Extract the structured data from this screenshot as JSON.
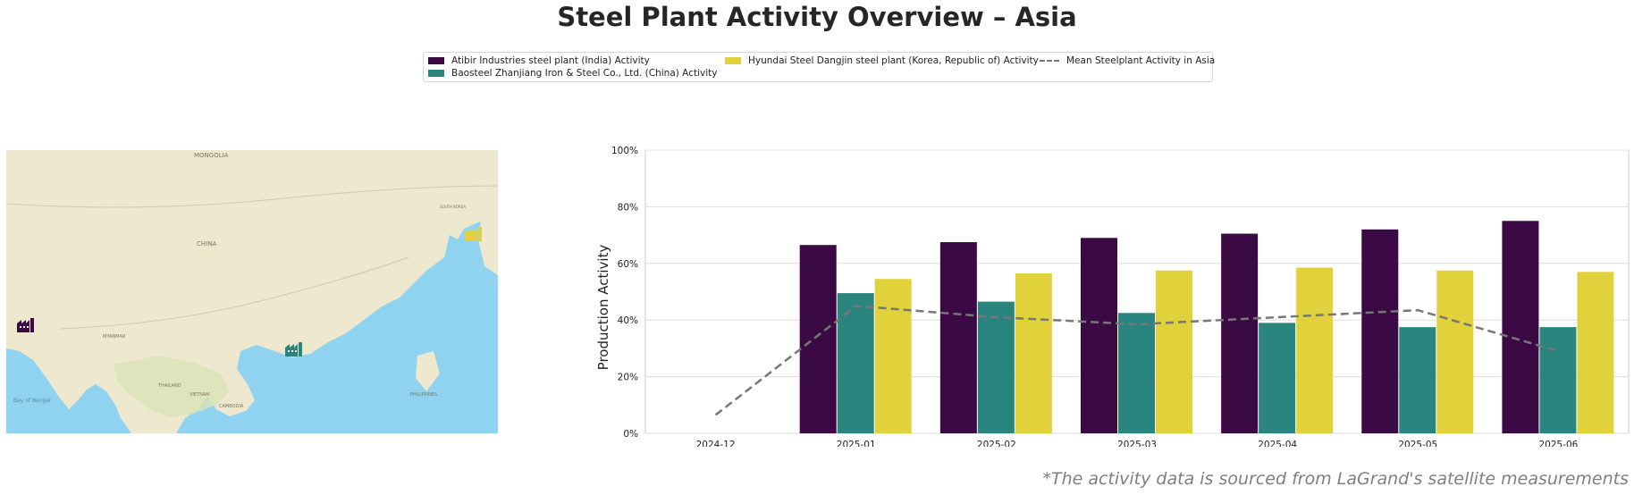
{
  "page": {
    "title": "Steel Plant Activity Overview – Asia",
    "footnote": "*The activity data is sourced from LaGrand's satellite measurements"
  },
  "legend": {
    "items": [
      {
        "label": "Atibir Industries steel plant (India) Activity",
        "color": "#3b0a45",
        "kind": "bar"
      },
      {
        "label": "Baosteel Zhanjiang Iron & Steel Co., Ltd. (China) Activity",
        "color": "#2a857e",
        "kind": "bar"
      },
      {
        "label": "Hyundai Steel Dangjin steel plant (Korea, Republic of) Activity",
        "color": "#e1d23b",
        "kind": "bar"
      },
      {
        "label": "Mean Steelplant Activity in Asia",
        "color": "#777777",
        "kind": "dashed-line"
      }
    ]
  },
  "map": {
    "labels": {
      "mongolia": "MONGOLIA",
      "china": "CHINA",
      "bay_of_bengal": "Bay of Bengal",
      "myanmar": "MYANMAR",
      "thailand": "THAILAND",
      "vietnam": "VIETNAM",
      "cambodia": "CAMBODIA",
      "philippines": "PHILIPPINES",
      "south_korea": "SOUTH KOREA"
    },
    "colors": {
      "land": "#eee8cf",
      "land_green": "#d9e3b8",
      "sea": "#8fd3f0"
    },
    "markers": [
      {
        "name": "atibir-marker",
        "icon": "factory-icon",
        "color": "#3b0a45"
      },
      {
        "name": "baosteel-marker",
        "icon": "factory-icon",
        "color": "#2a857e"
      },
      {
        "name": "hyundai-marker",
        "icon": "factory-icon",
        "color": "#e1d23b"
      }
    ]
  },
  "chart_data": {
    "type": "bar",
    "title": "",
    "xlabel": "",
    "ylabel": "Production Activity",
    "ylim": [
      0,
      100
    ],
    "yticks": [
      "0%",
      "20%",
      "40%",
      "60%",
      "80%",
      "100%"
    ],
    "grid": "horizontal",
    "categories": [
      "2024-12",
      "2025-01",
      "2025-02",
      "2025-03",
      "2025-04",
      "2025-05",
      "2025-06"
    ],
    "series": [
      {
        "name": "Atibir Industries steel plant (India) Activity",
        "color": "#3b0a45",
        "values": [
          null,
          66.5,
          67.5,
          69,
          70.5,
          72,
          75
        ]
      },
      {
        "name": "Baosteel Zhanjiang Iron & Steel Co., Ltd. (China) Activity",
        "color": "#2a857e",
        "values": [
          null,
          49.5,
          46.5,
          42.5,
          39,
          37.5,
          37.5
        ]
      },
      {
        "name": "Hyundai Steel Dangjin steel plant (Korea, Republic of) Activity",
        "color": "#e1d23b",
        "values": [
          null,
          54.5,
          56.5,
          57.5,
          58.5,
          57.5,
          57
        ]
      }
    ],
    "line": {
      "name": "Mean Steelplant Activity in Asia",
      "color": "#777777",
      "style": "dashed",
      "values": [
        6.5,
        45,
        41,
        38.5,
        41,
        43.5,
        29
      ]
    }
  }
}
